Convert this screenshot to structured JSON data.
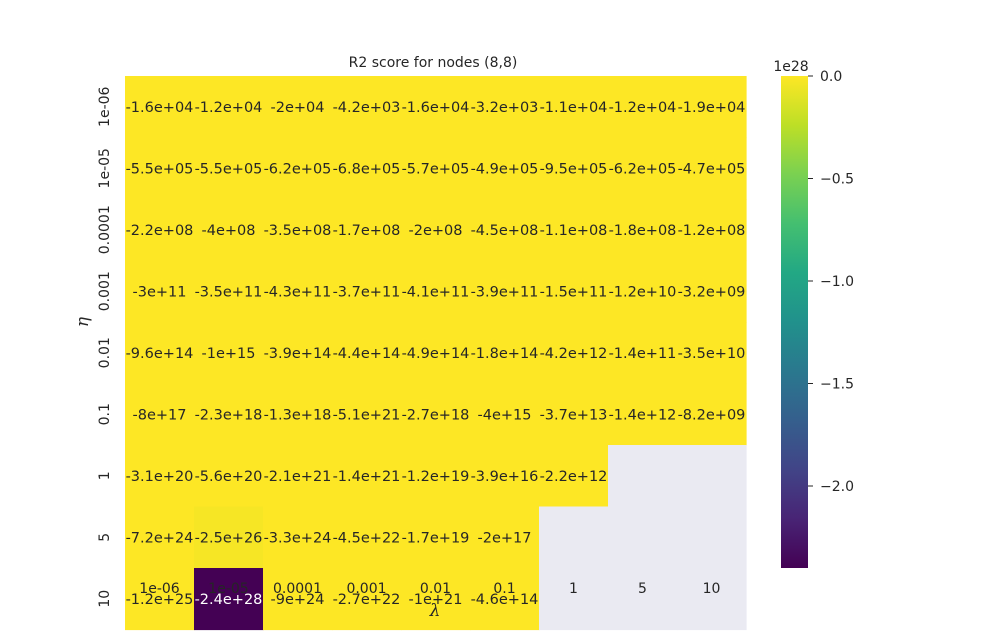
{
  "chart_data": {
    "type": "heatmap",
    "title": "R2 score for nodes (8,8)",
    "xlabel": "λ",
    "ylabel": "η",
    "x_categories": [
      "1e-06",
      "1e-05",
      "0.0001",
      "0.001",
      "0.01",
      "0.1",
      "1",
      "5",
      "10"
    ],
    "y_categories": [
      "1e-06",
      "1e-05",
      "0.0001",
      "0.001",
      "0.01",
      "0.1",
      "1",
      "5",
      "10"
    ],
    "values": [
      [
        -16000.0,
        -12000.0,
        -20000.0,
        -4200.0,
        -16000.0,
        -3200.0,
        -11000.0,
        -12000.0,
        -19000.0
      ],
      [
        -550000.0,
        -550000.0,
        -620000.0,
        -680000.0,
        -570000.0,
        -490000.0,
        -950000.0,
        -620000.0,
        -470000.0
      ],
      [
        -220000000.0,
        -400000000.0,
        -350000000.0,
        -170000000.0,
        -200000000.0,
        -450000000.0,
        -110000000.0,
        -180000000.0,
        -120000000.0
      ],
      [
        -300000000000.0,
        -350000000000.0,
        -430000000000.0,
        -370000000000.0,
        -410000000000.0,
        -390000000000.0,
        -150000000000.0,
        -12000000000.0,
        -3200000000.0
      ],
      [
        -960000000000000.0,
        -1000000000000000.0,
        -390000000000000.0,
        -440000000000000.0,
        -490000000000000.0,
        -180000000000000.0,
        -4200000000000.0,
        -140000000000.0,
        -35000000000.0
      ],
      [
        -8e+17,
        -2.3e+18,
        -1.3e+18,
        -5.1e+21,
        -2.7e+18,
        -4000000000000000.0,
        -37000000000000.0,
        -1400000000000.0,
        -8200000000.0
      ],
      [
        -3.1e+20,
        -5.6e+20,
        -2.1e+21,
        -1.4e+21,
        -1.2e+19,
        -3.9e+16,
        -2200000000000.0,
        null,
        null
      ],
      [
        -7.2e+24,
        -2.5e+26,
        -3.3e+24,
        -4.5e+22,
        -1.7e+19,
        -2e+17,
        null,
        null,
        null
      ],
      [
        -1.2e+25,
        -2.4e+28,
        -9e+24,
        -2.7e+22,
        -1e+21,
        -460000000000000.0,
        null,
        null,
        null
      ]
    ],
    "annotations": [
      [
        "-1.6e+04",
        "-1.2e+04",
        "-2e+04",
        "-4.2e+03",
        "-1.6e+04",
        "-3.2e+03",
        "-1.1e+04",
        "-1.2e+04",
        "-1.9e+04"
      ],
      [
        "-5.5e+05",
        "-5.5e+05",
        "-6.2e+05",
        "-6.8e+05",
        "-5.7e+05",
        "-4.9e+05",
        "-9.5e+05",
        "-6.2e+05",
        "-4.7e+05"
      ],
      [
        "-2.2e+08",
        "-4e+08",
        "-3.5e+08",
        "-1.7e+08",
        "-2e+08",
        "-4.5e+08",
        "-1.1e+08",
        "-1.8e+08",
        "-1.2e+08"
      ],
      [
        "-3e+11",
        "-3.5e+11",
        "-4.3e+11",
        "-3.7e+11",
        "-4.1e+11",
        "-3.9e+11",
        "-1.5e+11",
        "-1.2e+10",
        "-3.2e+09"
      ],
      [
        "-9.6e+14",
        "-1e+15",
        "-3.9e+14",
        "-4.4e+14",
        "-4.9e+14",
        "-1.8e+14",
        "-4.2e+12",
        "-1.4e+11",
        "-3.5e+10"
      ],
      [
        "-8e+17",
        "-2.3e+18",
        "-1.3e+18",
        "-5.1e+21",
        "-2.7e+18",
        "-4e+15",
        "-3.7e+13",
        "-1.4e+12",
        "-8.2e+09"
      ],
      [
        "-3.1e+20",
        "-5.6e+20",
        "-2.1e+21",
        "-1.4e+21",
        "-1.2e+19",
        "-3.9e+16",
        "-2.2e+12",
        "",
        ""
      ],
      [
        "-7.2e+24",
        "-2.5e+26",
        "-3.3e+24",
        "-4.5e+22",
        "-1.7e+19",
        "-2e+17",
        "",
        "",
        ""
      ],
      [
        "-1.2e+25",
        "-2.4e+28",
        "-9e+24",
        "-2.7e+22",
        "-1e+21",
        "-4.6e+14",
        "",
        "",
        ""
      ]
    ],
    "colorbar": {
      "colormap": "viridis",
      "range": [
        -2.4e+28,
        0
      ],
      "ticks": [
        0,
        -5e+27,
        -1e+28,
        -1.5e+28,
        -2e+28
      ],
      "tick_labels": [
        "0.0",
        "−0.5",
        "−1.0",
        "−1.5",
        "−2.0"
      ],
      "offset_text": "1e28"
    },
    "missing_color": "#eaeaf2"
  }
}
